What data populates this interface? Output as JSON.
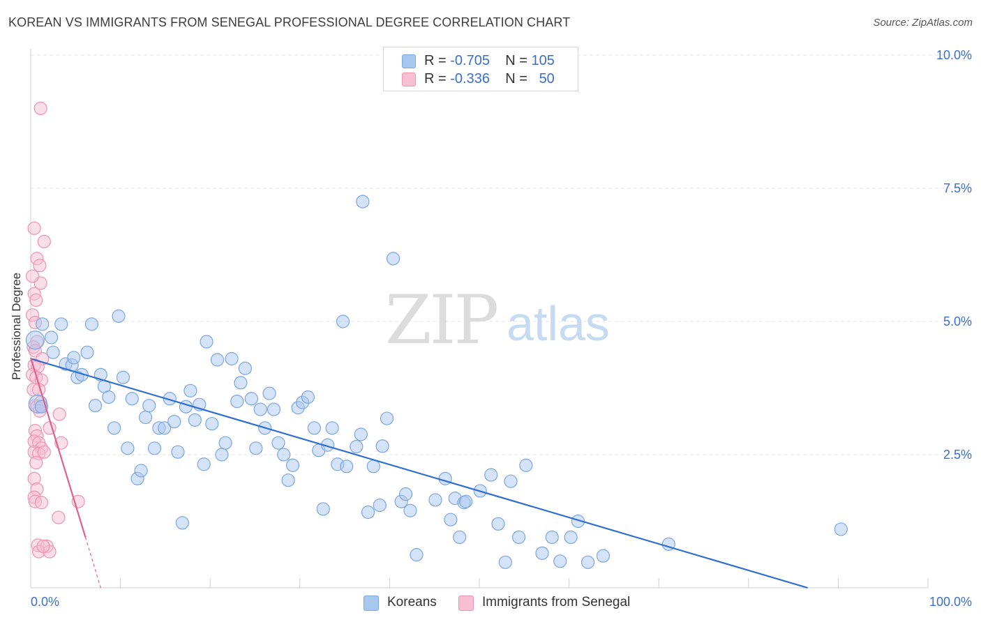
{
  "header": {
    "title": "KOREAN VS IMMIGRANTS FROM SENEGAL PROFESSIONAL DEGREE CORRELATION CHART",
    "source": "Source: ZipAtlas.com"
  },
  "legend": {
    "rows": [
      {
        "r_label": "R =",
        "r_value": "-0.705",
        "n_label": "N =",
        "n_value": "105"
      },
      {
        "r_label": "R =",
        "r_value": "-0.336",
        "n_label": "N =",
        "n_value": "50"
      }
    ],
    "series_labels": [
      "Koreans",
      "Immigrants from Senegal"
    ]
  },
  "watermark": {
    "zip": "ZIP",
    "atlas": "atlas"
  },
  "colors": {
    "blue_fill": "#a9c8f0",
    "blue_stroke": "#7aa6e0",
    "blue_line": "#2f6fd0",
    "pink_fill": "#f7bfd1",
    "pink_stroke": "#ec93b1",
    "pink_line": "#e0608c",
    "tick_label": "#3a6fcf",
    "grid": "#e3e3e3"
  },
  "chart_data": {
    "type": "scatter",
    "title": "KOREAN VS IMMIGRANTS FROM SENEGAL PROFESSIONAL DEGREE CORRELATION CHART",
    "xlabel": "",
    "ylabel": "Professional Degree",
    "xlim": [
      0,
      100
    ],
    "ylim": [
      0,
      10.5
    ],
    "x_tick_labels": [
      "0.0%",
      "100.0%"
    ],
    "y_ticks": [
      2.5,
      5.0,
      7.5,
      10.0
    ],
    "y_tick_labels": [
      "2.5%",
      "5.0%",
      "7.5%",
      "10.0%"
    ],
    "grid": "horizontal dashed",
    "legend_placement": "top-center",
    "series": [
      {
        "name": "Koreans",
        "r": -0.705,
        "n": 105,
        "trend": {
          "x": [
            0,
            86.6
          ],
          "y": [
            4.3,
            0.0
          ]
        },
        "points": [
          [
            0.5,
            4.65
          ],
          [
            0.8,
            3.45
          ],
          [
            1.2,
            3.4
          ],
          [
            1.3,
            4.95
          ],
          [
            2.3,
            4.7
          ],
          [
            2.5,
            4.42
          ],
          [
            3.4,
            4.95
          ],
          [
            3.9,
            4.2
          ],
          [
            4.6,
            4.18
          ],
          [
            4.8,
            4.32
          ],
          [
            5.2,
            3.95
          ],
          [
            5.7,
            4.0
          ],
          [
            6.3,
            4.42
          ],
          [
            6.8,
            4.95
          ],
          [
            7.2,
            3.42
          ],
          [
            7.8,
            4.0
          ],
          [
            8.2,
            3.78
          ],
          [
            8.7,
            3.58
          ],
          [
            9.3,
            3.0
          ],
          [
            9.8,
            5.1
          ],
          [
            10.3,
            3.95
          ],
          [
            10.8,
            2.62
          ],
          [
            11.3,
            3.55
          ],
          [
            11.9,
            2.05
          ],
          [
            12.3,
            2.2
          ],
          [
            12.8,
            3.2
          ],
          [
            13.2,
            3.42
          ],
          [
            13.8,
            2.62
          ],
          [
            14.3,
            3.0
          ],
          [
            14.9,
            3.0
          ],
          [
            15.5,
            3.55
          ],
          [
            16.0,
            3.12
          ],
          [
            16.4,
            2.55
          ],
          [
            16.9,
            1.22
          ],
          [
            17.3,
            3.4
          ],
          [
            17.8,
            3.7
          ],
          [
            18.3,
            3.15
          ],
          [
            18.8,
            3.44
          ],
          [
            19.3,
            2.32
          ],
          [
            19.6,
            4.62
          ],
          [
            20.2,
            3.08
          ],
          [
            20.8,
            4.28
          ],
          [
            21.3,
            2.5
          ],
          [
            21.7,
            2.72
          ],
          [
            22.4,
            4.3
          ],
          [
            23.0,
            3.5
          ],
          [
            23.4,
            3.85
          ],
          [
            23.9,
            4.12
          ],
          [
            24.6,
            3.55
          ],
          [
            25.1,
            2.62
          ],
          [
            25.6,
            3.35
          ],
          [
            26.1,
            3.0
          ],
          [
            26.6,
            3.65
          ],
          [
            27.1,
            3.35
          ],
          [
            27.6,
            2.72
          ],
          [
            28.2,
            2.5
          ],
          [
            28.7,
            2.02
          ],
          [
            29.2,
            2.3
          ],
          [
            29.8,
            3.38
          ],
          [
            30.3,
            3.48
          ],
          [
            30.9,
            3.58
          ],
          [
            31.6,
            3.0
          ],
          [
            32.1,
            2.58
          ],
          [
            32.6,
            1.48
          ],
          [
            33.1,
            2.68
          ],
          [
            33.6,
            3.0
          ],
          [
            34.2,
            2.32
          ],
          [
            34.8,
            5.0
          ],
          [
            35.2,
            2.28
          ],
          [
            36.3,
            2.65
          ],
          [
            36.8,
            2.88
          ],
          [
            37.0,
            7.25
          ],
          [
            37.6,
            1.42
          ],
          [
            38.2,
            2.28
          ],
          [
            38.9,
            1.55
          ],
          [
            39.2,
            2.66
          ],
          [
            39.7,
            3.18
          ],
          [
            40.4,
            6.18
          ],
          [
            41.3,
            1.62
          ],
          [
            41.8,
            1.76
          ],
          [
            42.3,
            1.45
          ],
          [
            43.0,
            0.62
          ],
          [
            45.1,
            1.65
          ],
          [
            46.2,
            2.05
          ],
          [
            46.8,
            1.28
          ],
          [
            47.3,
            1.68
          ],
          [
            47.8,
            0.95
          ],
          [
            48.3,
            1.6
          ],
          [
            48.5,
            1.62
          ],
          [
            50.1,
            1.82
          ],
          [
            52.1,
            1.2
          ],
          [
            51.3,
            2.12
          ],
          [
            52.9,
            0.48
          ],
          [
            54.4,
            0.95
          ],
          [
            55.2,
            2.3
          ],
          [
            57.0,
            0.65
          ],
          [
            58.1,
            0.95
          ],
          [
            59.0,
            0.5
          ],
          [
            60.2,
            0.95
          ],
          [
            61.0,
            1.25
          ],
          [
            62.1,
            0.48
          ],
          [
            63.8,
            0.6
          ],
          [
            71.1,
            0.82
          ],
          [
            90.3,
            1.1
          ],
          [
            53.5,
            2.0
          ]
        ]
      },
      {
        "name": "Immigrants from Senegal",
        "r": -0.336,
        "n": 50,
        "trend": {
          "x": [
            0,
            6.1
          ],
          "y": [
            4.32,
            0.95
          ]
        },
        "trend_dashed": {
          "x": [
            6.1,
            7.8
          ],
          "y": [
            0.95,
            0.0
          ]
        },
        "points": [
          [
            1.1,
            9.0
          ],
          [
            0.4,
            6.75
          ],
          [
            0.7,
            6.18
          ],
          [
            1.0,
            6.05
          ],
          [
            1.1,
            5.72
          ],
          [
            1.5,
            6.5
          ],
          [
            0.2,
            5.85
          ],
          [
            0.4,
            5.52
          ],
          [
            0.6,
            5.4
          ],
          [
            0.2,
            5.12
          ],
          [
            0.5,
            4.98
          ],
          [
            0.7,
            4.62
          ],
          [
            0.3,
            4.52
          ],
          [
            0.5,
            4.45
          ],
          [
            1.3,
            4.3
          ],
          [
            0.4,
            4.18
          ],
          [
            0.8,
            4.15
          ],
          [
            0.2,
            4.0
          ],
          [
            0.6,
            3.95
          ],
          [
            1.2,
            3.9
          ],
          [
            0.3,
            3.72
          ],
          [
            0.9,
            3.72
          ],
          [
            0.5,
            3.42
          ],
          [
            0.7,
            3.4
          ],
          [
            1.1,
            3.48
          ],
          [
            1.0,
            3.32
          ],
          [
            2.1,
            3.0
          ],
          [
            0.5,
            2.95
          ],
          [
            0.7,
            2.85
          ],
          [
            0.4,
            2.75
          ],
          [
            0.9,
            2.72
          ],
          [
            1.2,
            2.62
          ],
          [
            0.4,
            2.55
          ],
          [
            0.9,
            2.52
          ],
          [
            0.6,
            2.35
          ],
          [
            0.4,
            2.05
          ],
          [
            3.2,
            3.26
          ],
          [
            3.4,
            2.72
          ],
          [
            0.7,
            1.85
          ],
          [
            0.4,
            1.7
          ],
          [
            0.5,
            1.62
          ],
          [
            1.2,
            1.6
          ],
          [
            3.1,
            1.32
          ],
          [
            5.3,
            1.62
          ],
          [
            0.8,
            0.8
          ],
          [
            1.8,
            0.78
          ],
          [
            0.9,
            0.68
          ],
          [
            2.1,
            0.68
          ],
          [
            1.4,
            0.78
          ],
          [
            1.5,
            2.55
          ]
        ]
      }
    ]
  }
}
